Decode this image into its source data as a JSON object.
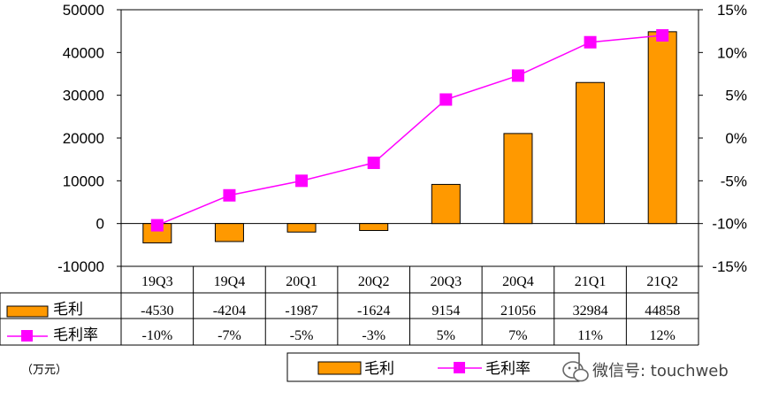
{
  "chart_data": {
    "type": "bar+line",
    "categories": [
      "19Q3",
      "19Q4",
      "20Q1",
      "20Q2",
      "20Q3",
      "20Q4",
      "21Q1",
      "21Q2"
    ],
    "series": [
      {
        "name": "毛利",
        "kind": "bar",
        "axis": "left",
        "values": [
          -4530,
          -4204,
          -1987,
          -1624,
          9154,
          21056,
          32984,
          44858
        ],
        "labels": [
          "-4530",
          "-4204",
          "-1987",
          "-1624",
          "9154",
          "21056",
          "32984",
          "44858"
        ],
        "color": "#ff9900"
      },
      {
        "name": "毛利率",
        "kind": "line",
        "axis": "right",
        "values": [
          -10.2,
          -6.7,
          -5.0,
          -2.9,
          4.5,
          7.3,
          11.2,
          12.0
        ],
        "labels": [
          "-10%",
          "-7%",
          "-5%",
          "-3%",
          "5%",
          "7%",
          "11%",
          "12%"
        ],
        "color": "#ff00ff"
      }
    ],
    "y_left": {
      "min": -10000,
      "max": 50000,
      "step": 10000,
      "ticks": [
        "50000",
        "40000",
        "30000",
        "20000",
        "10000",
        "0",
        "-10000"
      ]
    },
    "y_right": {
      "min": -15,
      "max": 15,
      "step": 5,
      "ticks": [
        "15%",
        "10%",
        "5%",
        "0%",
        "-5%",
        "-10%",
        "-15%"
      ]
    },
    "unit": "（万元）",
    "legend": [
      "毛利",
      "毛利率"
    ],
    "legend_position": "bottom"
  },
  "watermark": "微信号: touchweb"
}
